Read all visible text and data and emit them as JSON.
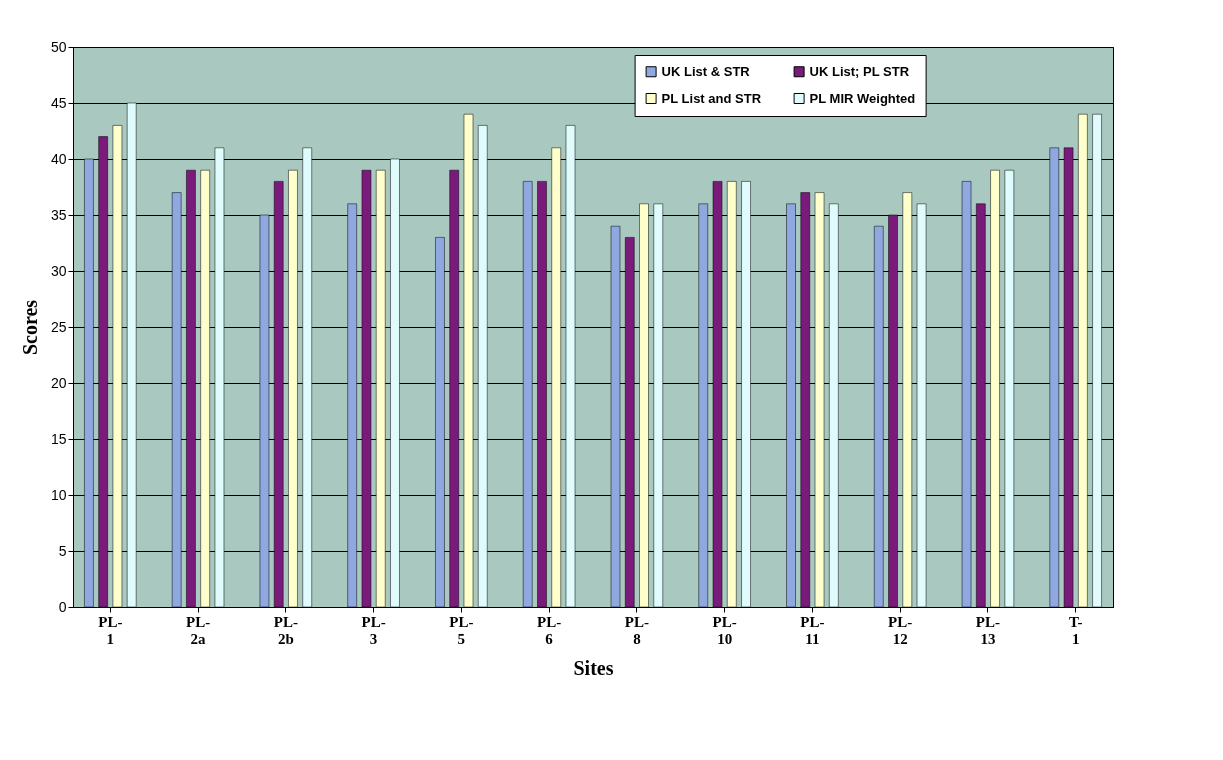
{
  "chart_data": {
    "type": "bar",
    "xlabel": "Sites",
    "ylabel": "Scores",
    "categories": [
      "PL-1",
      "PL-2a",
      "PL-2b",
      "PL-3",
      "PL-5",
      "PL-6",
      "PL-8",
      "PL-10",
      "PL-11",
      "PL-12",
      "PL-13",
      "T-1"
    ],
    "series": [
      {
        "name": "UK List & STR",
        "color": "#8fa8e0",
        "values": [
          40,
          37,
          35,
          36,
          33,
          38,
          34,
          36,
          36,
          34,
          38,
          41
        ]
      },
      {
        "name": "UK List; PL STR",
        "color": "#7a1a7a",
        "values": [
          42,
          39,
          38,
          39,
          39,
          38,
          33,
          38,
          37,
          35,
          36,
          41
        ]
      },
      {
        "name": "PL List and STR",
        "color": "#ffffcc",
        "values": [
          43,
          39,
          39,
          39,
          44,
          41,
          36,
          38,
          37,
          37,
          39,
          44
        ]
      },
      {
        "name": "PL MIR Weighted",
        "color": "#e0fbfb",
        "values": [
          45,
          41,
          41,
          40,
          43,
          43,
          36,
          38,
          36,
          36,
          39,
          44
        ]
      }
    ],
    "ylim": [
      0,
      50
    ],
    "yticks": [
      0,
      5,
      10,
      15,
      20,
      25,
      30,
      35,
      40,
      45,
      50
    ],
    "grid": "y",
    "legend": "top right"
  }
}
